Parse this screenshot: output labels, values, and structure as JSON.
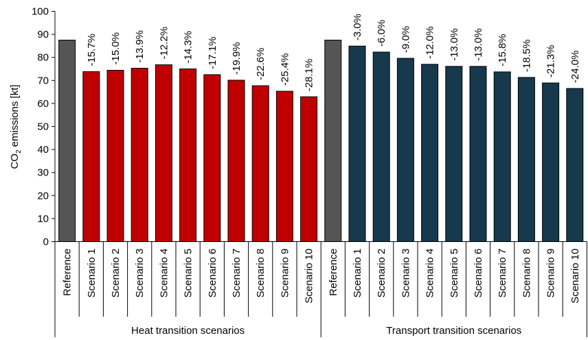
{
  "chart_data": {
    "type": "bar",
    "ylabel": "CO2 emissions [kt]",
    "ylabel_parts": {
      "prefix": "CO",
      "subscript": "2",
      "suffix": " emissions [kt]"
    },
    "ylim": [
      0,
      100
    ],
    "yticks": [
      "0",
      "10",
      "20",
      "30",
      "40",
      "50",
      "60",
      "70",
      "80",
      "90",
      "100"
    ],
    "grid": false,
    "legend": "none",
    "colors": {
      "reference": "#555555",
      "heat": "#c00000",
      "transport": "#17394d"
    },
    "groups": [
      {
        "name": "Heat transition scenarios",
        "series": "heat",
        "categories": [
          "Reference",
          "Scenario 1",
          "Scenario 2",
          "Scenario 3",
          "Scenario 4",
          "Scenario 5",
          "Scenario 6",
          "Scenario 7",
          "Scenario 8",
          "Scenario 9",
          "Scenario 10"
        ],
        "values": [
          87.5,
          73.8,
          74.4,
          75.3,
          76.8,
          75.0,
          72.5,
          70.1,
          67.7,
          65.3,
          62.9
        ],
        "labels": [
          "",
          "-15.7%",
          "-15.0%",
          "-13.9%",
          "-12.2%",
          "-14.3%",
          "-17.1%",
          "-19.9%",
          "-22.6%",
          "-25.4%",
          "-28.1%"
        ]
      },
      {
        "name": "Transport transition scenarios",
        "series": "transport",
        "categories": [
          "Reference",
          "Scenario 1",
          "Scenario 2",
          "Scenario 3",
          "Scenario 4",
          "Scenario 5",
          "Scenario 6",
          "Scenario 7",
          "Scenario 8",
          "Scenario 9",
          "Scenario 10"
        ],
        "values": [
          87.5,
          84.9,
          82.3,
          79.6,
          77.0,
          76.1,
          76.1,
          73.7,
          71.3,
          68.9,
          66.5
        ],
        "labels": [
          "",
          "-3.0%",
          "-6.0%",
          "-9.0%",
          "-12.0%",
          "-13.0%",
          "-13.0%",
          "-15.8%",
          "-18.5%",
          "-21.3%",
          "-24.0%"
        ]
      }
    ]
  }
}
